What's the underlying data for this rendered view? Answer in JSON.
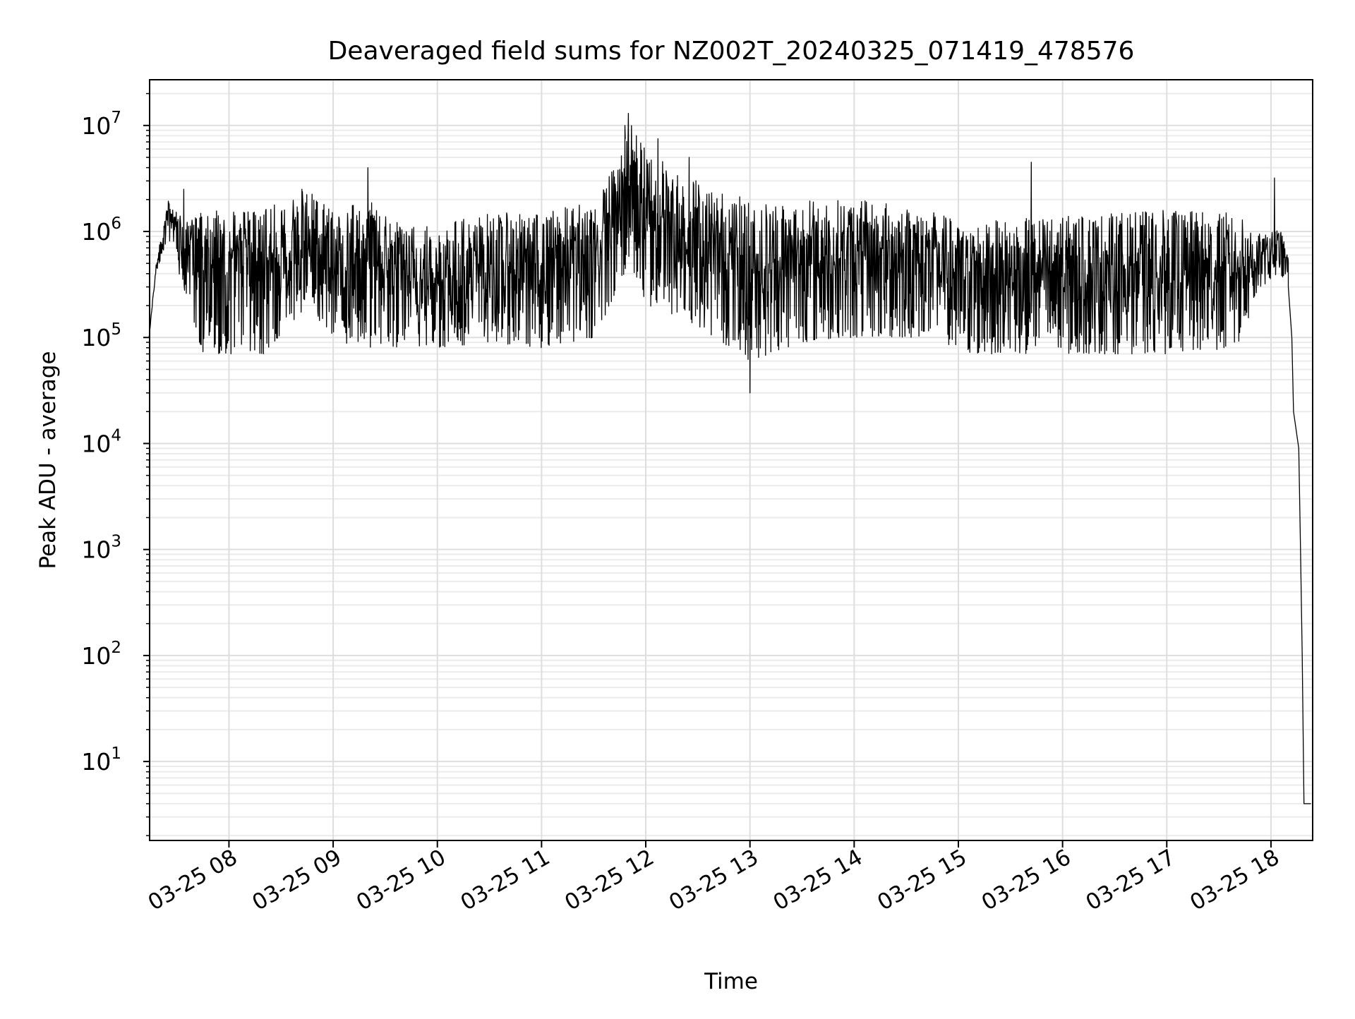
{
  "chart_data": {
    "type": "line",
    "title": "Deaveraged field sums for NZ002T_20240325_071419_478576",
    "xlabel": "Time",
    "ylabel": "Peak ADU - average",
    "x_axis": {
      "kind": "time",
      "range": [
        "2024-03-25T07:14:19",
        "2024-03-25T18:24:00"
      ],
      "ticks": [
        "2024-03-25T08:00",
        "2024-03-25T09:00",
        "2024-03-25T10:00",
        "2024-03-25T11:00",
        "2024-03-25T12:00",
        "2024-03-25T13:00",
        "2024-03-25T14:00",
        "2024-03-25T15:00",
        "2024-03-25T16:00",
        "2024-03-25T17:00",
        "2024-03-25T18:00"
      ],
      "tick_labels": [
        "03-25 08",
        "03-25 09",
        "03-25 10",
        "03-25 11",
        "03-25 12",
        "03-25 13",
        "03-25 14",
        "03-25 15",
        "03-25 16",
        "03-25 17",
        "03-25 18"
      ]
    },
    "y_axis": {
      "scale": "log",
      "range": [
        1.8,
        27000000
      ],
      "ticks": [
        10,
        100,
        1000,
        10000,
        100000,
        1000000,
        10000000
      ],
      "tick_labels": [
        {
          "base": "10",
          "exp": "1"
        },
        {
          "base": "10",
          "exp": "2"
        },
        {
          "base": "10",
          "exp": "3"
        },
        {
          "base": "10",
          "exp": "4"
        },
        {
          "base": "10",
          "exp": "5"
        },
        {
          "base": "10",
          "exp": "6"
        },
        {
          "base": "10",
          "exp": "7"
        }
      ]
    },
    "grid": true,
    "series": [
      {
        "color": "#000000",
        "envelope": [
          {
            "x": "2024-03-25T07:14",
            "low": 100000,
            "high": 100000
          },
          {
            "x": "2024-03-25T07:18",
            "low": 400000,
            "high": 500000
          },
          {
            "x": "2024-03-25T07:25",
            "low": 900000,
            "high": 2000000
          },
          {
            "x": "2024-03-25T07:35",
            "low": 250000,
            "high": 1200000
          },
          {
            "x": "2024-03-25T07:45",
            "low": 70000,
            "high": 1600000
          },
          {
            "x": "2024-03-25T08:00",
            "low": 70000,
            "high": 1600000
          },
          {
            "x": "2024-03-25T08:20",
            "low": 70000,
            "high": 1600000
          },
          {
            "x": "2024-03-25T08:45",
            "low": 200000,
            "high": 2500000
          },
          {
            "x": "2024-03-25T09:00",
            "low": 90000,
            "high": 1500000
          },
          {
            "x": "2024-03-25T09:20",
            "low": 80000,
            "high": 2000000
          },
          {
            "x": "2024-03-25T09:40",
            "low": 80000,
            "high": 1200000
          },
          {
            "x": "2024-03-25T10:00",
            "low": 80000,
            "high": 1200000
          },
          {
            "x": "2024-03-25T10:30",
            "low": 90000,
            "high": 1500000
          },
          {
            "x": "2024-03-25T11:00",
            "low": 80000,
            "high": 1500000
          },
          {
            "x": "2024-03-25T11:30",
            "low": 100000,
            "high": 2000000
          },
          {
            "x": "2024-03-25T11:45",
            "low": 300000,
            "high": 5000000
          },
          {
            "x": "2024-03-25T11:50",
            "low": 500000,
            "high": 12000000
          },
          {
            "x": "2024-03-25T12:00",
            "low": 200000,
            "high": 6000000
          },
          {
            "x": "2024-03-25T12:20",
            "low": 150000,
            "high": 4000000
          },
          {
            "x": "2024-03-25T12:40",
            "low": 100000,
            "high": 2500000
          },
          {
            "x": "2024-03-25T13:00",
            "low": 60000,
            "high": 2000000
          },
          {
            "x": "2024-03-25T13:30",
            "low": 90000,
            "high": 2000000
          },
          {
            "x": "2024-03-25T14:00",
            "low": 100000,
            "high": 2000000
          },
          {
            "x": "2024-03-25T14:30",
            "low": 100000,
            "high": 1800000
          },
          {
            "x": "2024-03-25T14:50",
            "low": 100000,
            "high": 1500000
          },
          {
            "x": "2024-03-25T15:00",
            "low": 70000,
            "high": 1200000
          },
          {
            "x": "2024-03-25T15:30",
            "low": 70000,
            "high": 1300000
          },
          {
            "x": "2024-03-25T16:00",
            "low": 70000,
            "high": 1400000
          },
          {
            "x": "2024-03-25T16:30",
            "low": 70000,
            "high": 1500000
          },
          {
            "x": "2024-03-25T17:00",
            "low": 70000,
            "high": 1600000
          },
          {
            "x": "2024-03-25T17:40",
            "low": 80000,
            "high": 1500000
          },
          {
            "x": "2024-03-25T17:55",
            "low": 300000,
            "high": 900000
          },
          {
            "x": "2024-03-25T18:05",
            "low": 400000,
            "high": 1100000
          },
          {
            "x": "2024-03-25T18:10",
            "low": 300000,
            "high": 600000
          }
        ],
        "spikes": [
          {
            "x": "2024-03-25T07:34",
            "y": 2500000
          },
          {
            "x": "2024-03-25T08:42",
            "y": 2500000
          },
          {
            "x": "2024-03-25T09:20",
            "y": 4000000
          },
          {
            "x": "2024-03-25T11:48",
            "y": 10000000
          },
          {
            "x": "2024-03-25T11:50",
            "y": 13000000
          },
          {
            "x": "2024-03-25T12:07",
            "y": 7500000
          },
          {
            "x": "2024-03-25T12:25",
            "y": 5000000
          },
          {
            "x": "2024-03-25T13:00",
            "y": 30000
          },
          {
            "x": "2024-03-25T15:42",
            "y": 4500000
          },
          {
            "x": "2024-03-25T18:02",
            "y": 3200000
          }
        ],
        "tail": [
          {
            "x": "2024-03-25T18:10",
            "y": 300000
          },
          {
            "x": "2024-03-25T18:12",
            "y": 100000
          },
          {
            "x": "2024-03-25T18:13",
            "y": 20000
          },
          {
            "x": "2024-03-25T18:16",
            "y": 9000
          },
          {
            "x": "2024-03-25T18:17",
            "y": 1000
          },
          {
            "x": "2024-03-25T18:18",
            "y": 100
          },
          {
            "x": "2024-03-25T18:19",
            "y": 4
          },
          {
            "x": "2024-03-25T18:23",
            "y": 4
          }
        ]
      }
    ]
  }
}
